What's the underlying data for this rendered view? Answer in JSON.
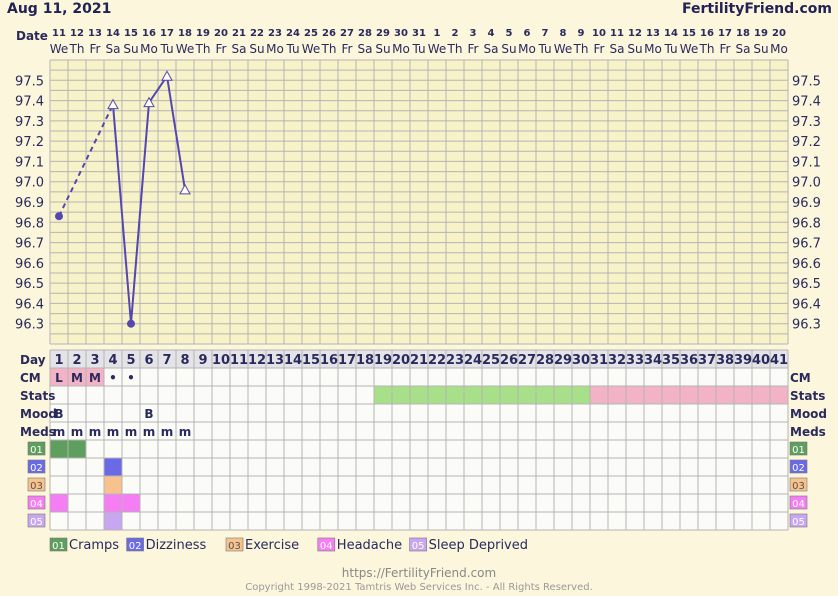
{
  "header": {
    "date": "Aug 11, 2021",
    "brand": "FertilityFriend.com",
    "date_label": "Date"
  },
  "colors": {
    "page_bg": "#fbf6dc",
    "temp_area": "#f7f2c8",
    "grid_line": "#b4b4b4",
    "line": "#5546b0",
    "label_text": "#2a2a5c",
    "stats_green": "#a8e08a",
    "stats_pink": "#f2b3c6",
    "cm_pink": "#f2b3c6",
    "cramps": "#5e9e5e",
    "dizziness": "#6a6ae6",
    "exercise": "#f7c28e",
    "headache": "#f57ef5",
    "sleep_deprived": "#c8a6f0"
  },
  "chart_data": {
    "type": "line",
    "title": "",
    "xlabel": "Day",
    "ylabel": "",
    "ylim": [
      96.2,
      97.6
    ],
    "ytick_values": [
      96.3,
      96.4,
      96.5,
      96.6,
      96.7,
      96.8,
      96.9,
      97.0,
      97.1,
      97.2,
      97.3,
      97.4,
      97.5
    ],
    "ytick_labels": [
      "96.3",
      "96.4",
      "96.5",
      "96.6",
      "96.7",
      "96.8",
      "96.9",
      "97.0",
      "97.1",
      "97.2",
      "97.3",
      "97.4",
      "97.5"
    ],
    "dates": [
      "11",
      "12",
      "13",
      "14",
      "15",
      "16",
      "17",
      "18",
      "19",
      "20",
      "21",
      "22",
      "23",
      "24",
      "25",
      "26",
      "27",
      "28",
      "29",
      "30",
      "31",
      "1",
      "2",
      "3",
      "4",
      "5",
      "6",
      "7",
      "8",
      "9",
      "10",
      "11",
      "12",
      "13",
      "14",
      "15",
      "16",
      "17",
      "18",
      "19",
      "20"
    ],
    "weekdays": [
      "We",
      "Th",
      "Fr",
      "Sa",
      "Su",
      "Mo",
      "Tu",
      "We",
      "Th",
      "Fr",
      "Sa",
      "Su",
      "Mo",
      "Tu",
      "We",
      "Th",
      "Fr",
      "Sa",
      "Su",
      "Mo",
      "Tu",
      "We",
      "Th",
      "Fr",
      "Sa",
      "Su",
      "Mo",
      "Tu",
      "We",
      "Th",
      "Fr",
      "Sa",
      "Su",
      "Mo",
      "Tu",
      "We",
      "Th",
      "Fr",
      "Sa",
      "Su",
      "Mo"
    ],
    "cycle_days": [
      "1",
      "2",
      "3",
      "4",
      "5",
      "6",
      "7",
      "8",
      "9",
      "10",
      "11",
      "12",
      "13",
      "14",
      "15",
      "16",
      "17",
      "18",
      "19",
      "20",
      "21",
      "22",
      "23",
      "24",
      "25",
      "26",
      "27",
      "28",
      "29",
      "30",
      "31",
      "32",
      "33",
      "34",
      "35",
      "36",
      "37",
      "38",
      "39",
      "40",
      "41"
    ],
    "series": [
      {
        "points": [
          {
            "day": 1,
            "temp": 96.83,
            "marker": "dot"
          },
          {
            "day": 4,
            "temp": 97.38,
            "marker": "triangle"
          },
          {
            "day": 5,
            "temp": 96.3,
            "marker": "dot"
          },
          {
            "day": 6,
            "temp": 97.39,
            "marker": "triangle"
          },
          {
            "day": 7,
            "temp": 97.52,
            "marker": "triangle"
          },
          {
            "day": 8,
            "temp": 96.96,
            "marker": "triangle"
          }
        ],
        "segments": [
          {
            "from": 1,
            "to": 4,
            "style": "dashed"
          },
          {
            "from": 4,
            "to": 5,
            "style": "solid"
          },
          {
            "from": 5,
            "to": 6,
            "style": "solid"
          },
          {
            "from": 6,
            "to": 7,
            "style": "solid"
          },
          {
            "from": 7,
            "to": 8,
            "style": "solid"
          }
        ]
      }
    ],
    "grid": true
  },
  "rows": {
    "day_label": "Day",
    "cm_label": "CM",
    "stats_label": "Stats",
    "mood_label": "Mood",
    "meds_label": "Meds",
    "cm": [
      {
        "day": 1,
        "value": "L",
        "bg": "pink"
      },
      {
        "day": 2,
        "value": "M",
        "bg": "pink"
      },
      {
        "day": 3,
        "value": "M",
        "bg": "pink"
      },
      {
        "day": 4,
        "value": "•",
        "bg": ""
      },
      {
        "day": 5,
        "value": "•",
        "bg": ""
      }
    ],
    "stats": [
      {
        "from": 19,
        "to": 30,
        "color": "green"
      },
      {
        "from": 31,
        "to": 41,
        "color": "pink"
      }
    ],
    "mood": [
      {
        "day": 1,
        "value": "B"
      },
      {
        "day": 6,
        "value": "B"
      }
    ],
    "meds": [
      {
        "day": 1,
        "value": "m"
      },
      {
        "day": 2,
        "value": "m"
      },
      {
        "day": 3,
        "value": "m"
      },
      {
        "day": 4,
        "value": "m"
      },
      {
        "day": 5,
        "value": "m"
      },
      {
        "day": 6,
        "value": "m"
      },
      {
        "day": 7,
        "value": "m"
      },
      {
        "day": 8,
        "value": "m"
      }
    ],
    "symptoms": [
      {
        "code": "01",
        "name": "Cramps",
        "color_key": "cramps",
        "days": [
          1,
          2
        ]
      },
      {
        "code": "02",
        "name": "Dizziness",
        "color_key": "dizziness",
        "days": [
          4
        ]
      },
      {
        "code": "03",
        "name": "Exercise",
        "color_key": "exercise",
        "days": [
          4
        ]
      },
      {
        "code": "04",
        "name": "Headache",
        "color_key": "headache",
        "days": [
          1,
          4,
          5
        ]
      },
      {
        "code": "05",
        "name": "Sleep Deprived",
        "color_key": "sleep_deprived",
        "days": [
          4
        ]
      }
    ]
  },
  "footer": {
    "url": "https://FertilityFriend.com",
    "copyright": "Copyright 1998-2021 Tamtris Web Services Inc. - All Rights Reserved."
  }
}
